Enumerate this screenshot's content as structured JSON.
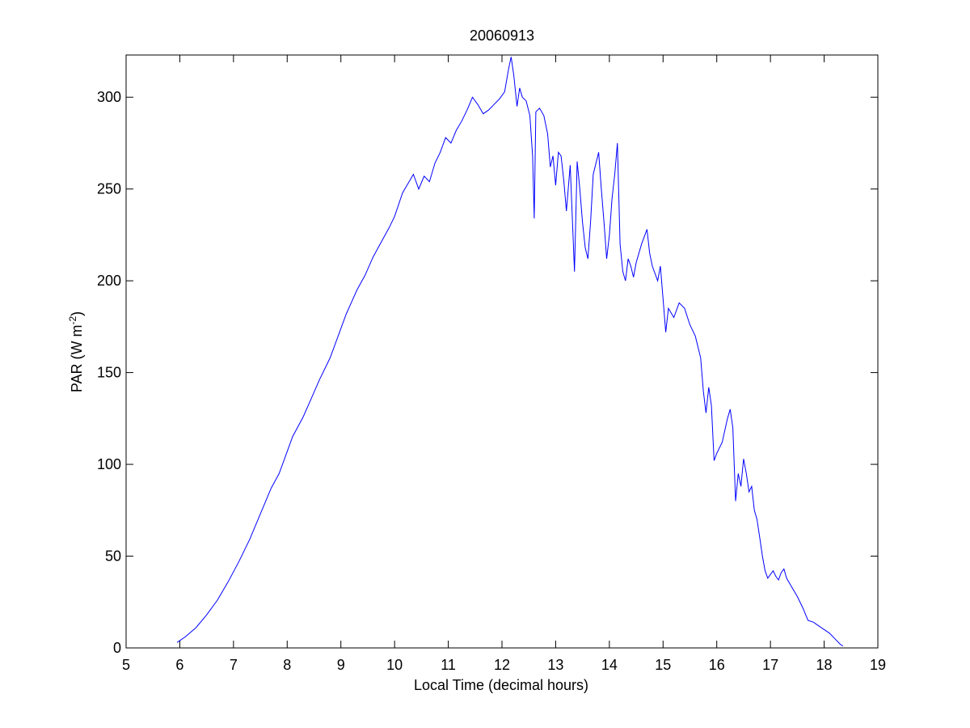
{
  "chart_data": {
    "type": "line",
    "title": "20060913",
    "xlabel": "Local Time (decimal hours)",
    "ylabel": "PAR (W m",
    "ylabel_sup": "-2",
    "ylabel_close": ")",
    "xlim": [
      5,
      19
    ],
    "ylim": [
      0,
      323
    ],
    "xticks": [
      5,
      6,
      7,
      8,
      9,
      10,
      11,
      12,
      13,
      14,
      15,
      16,
      17,
      18,
      19
    ],
    "yticks": [
      0,
      50,
      100,
      150,
      200,
      250,
      300
    ],
    "grid": false,
    "legend": "none",
    "line_color": "#0000ff",
    "series": [
      {
        "x": [
          5.95,
          6.1,
          6.3,
          6.5,
          6.7,
          6.9,
          7.1,
          7.3,
          7.5,
          7.7,
          7.85,
          8.0,
          8.1,
          8.3,
          8.45,
          8.6,
          8.8,
          8.95,
          9.1,
          9.3,
          9.45,
          9.6,
          9.75,
          9.9,
          10.0,
          10.15,
          10.25,
          10.35,
          10.45,
          10.55,
          10.65,
          10.75,
          10.85,
          10.95,
          11.05,
          11.15,
          11.25,
          11.35,
          11.45,
          11.55,
          11.65,
          11.75,
          11.85,
          11.95,
          12.05,
          12.12,
          12.17,
          12.22,
          12.28,
          12.33,
          12.38,
          12.45,
          12.52,
          12.57,
          12.6,
          12.63,
          12.7,
          12.78,
          12.85,
          12.9,
          12.95,
          13.0,
          13.05,
          13.1,
          13.15,
          13.2,
          13.27,
          13.35,
          13.4,
          13.45,
          13.5,
          13.55,
          13.6,
          13.65,
          13.7,
          13.8,
          13.85,
          13.9,
          13.95,
          14.0,
          14.05,
          14.1,
          14.15,
          14.2,
          14.25,
          14.3,
          14.35,
          14.4,
          14.45,
          14.5,
          14.6,
          14.7,
          14.75,
          14.8,
          14.9,
          14.95,
          15.0,
          15.05,
          15.1,
          15.2,
          15.3,
          15.4,
          15.5,
          15.6,
          15.7,
          15.75,
          15.8,
          15.85,
          15.9,
          15.95,
          16.0,
          16.1,
          16.2,
          16.25,
          16.3,
          16.35,
          16.4,
          16.45,
          16.5,
          16.55,
          16.6,
          16.65,
          16.7,
          16.75,
          16.8,
          16.85,
          16.9,
          16.95,
          17.0,
          17.05,
          17.1,
          17.15,
          17.2,
          17.25,
          17.3,
          17.4,
          17.5,
          17.6,
          17.7,
          17.8,
          17.9,
          18.0,
          18.1,
          18.2,
          18.3,
          18.35
        ],
        "y": [
          3,
          6,
          11,
          18,
          26,
          36,
          47,
          59,
          73,
          87,
          95,
          107,
          115,
          126,
          136,
          146,
          158,
          170,
          182,
          195,
          203,
          213,
          221,
          229,
          235,
          248,
          253,
          258,
          250,
          257,
          254,
          264,
          270,
          278,
          275,
          282,
          287,
          293,
          300,
          296,
          291,
          293,
          296,
          299,
          303,
          315,
          322,
          312,
          295,
          305,
          300,
          298,
          290,
          268,
          234,
          292,
          294,
          290,
          280,
          262,
          268,
          252,
          270,
          268,
          255,
          238,
          263,
          205,
          265,
          250,
          232,
          218,
          212,
          232,
          258,
          270,
          250,
          232,
          212,
          225,
          245,
          258,
          275,
          220,
          205,
          200,
          212,
          208,
          202,
          210,
          220,
          228,
          215,
          208,
          200,
          208,
          190,
          172,
          185,
          180,
          188,
          185,
          176,
          170,
          158,
          140,
          128,
          142,
          132,
          102,
          106,
          112,
          125,
          130,
          120,
          80,
          95,
          88,
          103,
          95,
          85,
          88,
          75,
          70,
          60,
          50,
          42,
          38,
          40,
          42,
          39,
          37,
          41,
          43,
          38,
          33,
          28,
          22,
          15,
          14,
          12,
          10,
          8,
          5,
          2,
          1
        ]
      }
    ]
  }
}
